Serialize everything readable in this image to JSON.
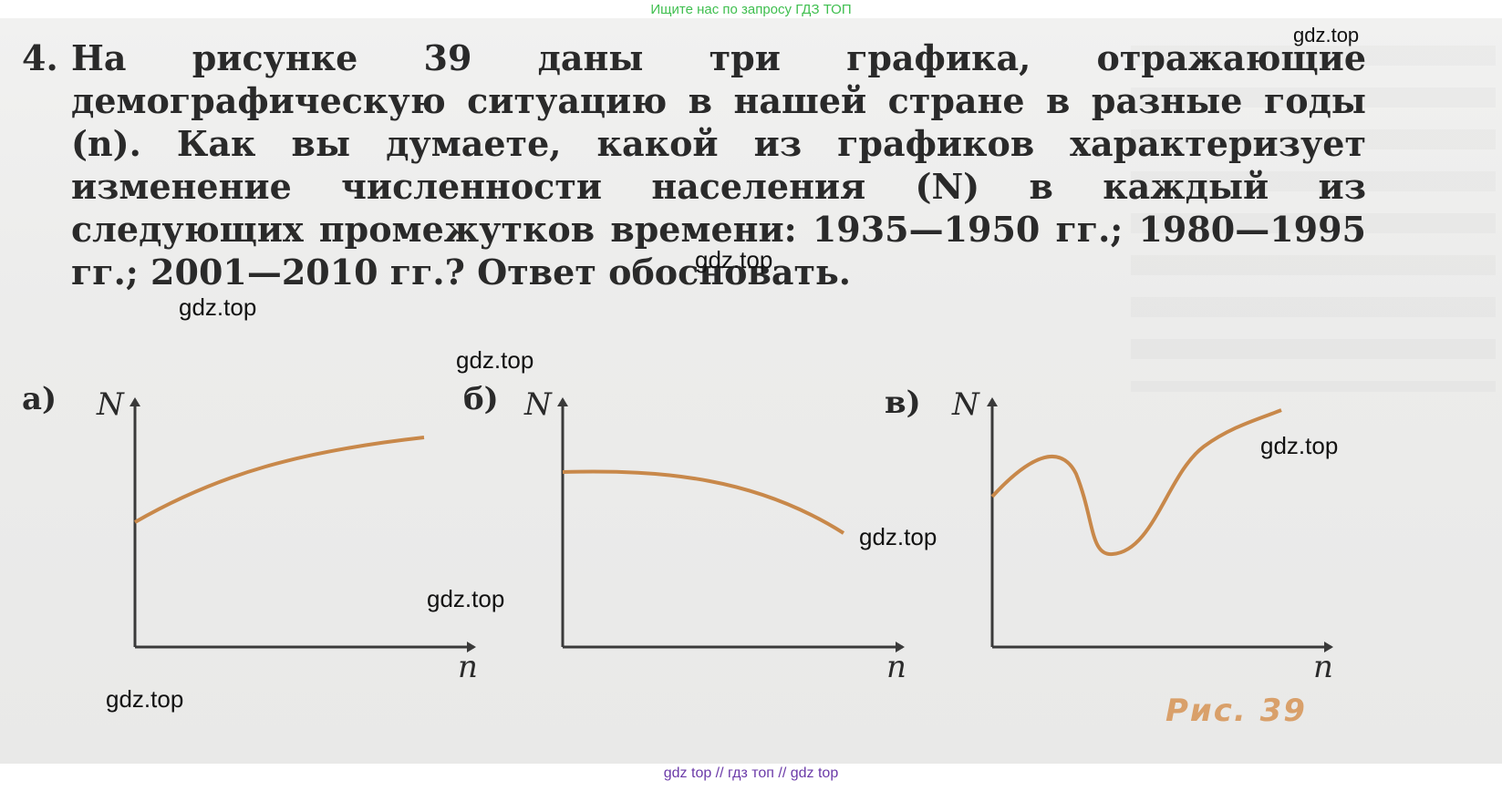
{
  "top_banner": "Ищите нас по запросу ГДЗ ТОП",
  "problem": {
    "number": "4.",
    "text": "На рисунке 39 даны три графика, отражающие демографическую ситуацию в нашей стране в разные годы (n). Как вы думаете, какой из графиков характеризует изменение численности населения (N) в каждый из следующих промежутков времени: 1935—1950 гг.; 1980—1995 гг.; 2001—2010 гг.? Ответ обосновать."
  },
  "graphs": [
    {
      "label": "а)",
      "y_axis": "N",
      "x_axis": "n"
    },
    {
      "label": "б)",
      "y_axis": "N",
      "x_axis": "n"
    },
    {
      "label": "в)",
      "y_axis": "N",
      "x_axis": "n"
    }
  ],
  "figure_caption": "Рис. 39",
  "watermarks": [
    "gdz.top",
    "gdz.top",
    "gdz.top",
    "gdz.top",
    "gdz.top",
    "gdz.top",
    "gdz.top",
    "gdz.top"
  ],
  "bottom_banner": "gdz top  //  гдз топ  //  gdz top",
  "colors": {
    "curve": "#c8884a",
    "axis": "#3a3a3a",
    "caption": "#d9a06a",
    "banner_top": "#3fbf4f",
    "banner_bottom": "#6b3aa8"
  }
}
